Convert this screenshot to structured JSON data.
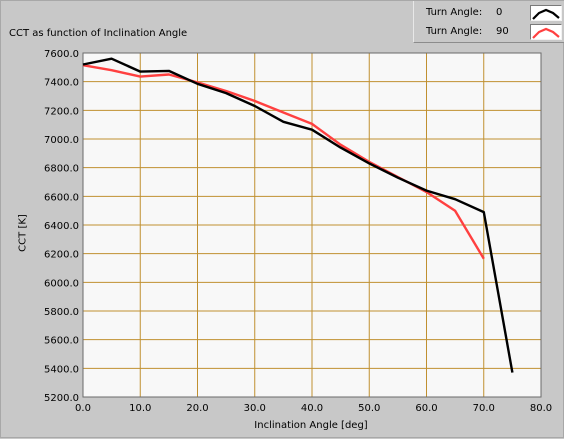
{
  "chart_data": {
    "type": "line",
    "title": "CCT as function of Inclination Angle",
    "xlabel": "Inclination Angle [deg]",
    "ylabel": "CCT [K]",
    "xlim": [
      0.0,
      80.0
    ],
    "ylim": [
      5200.0,
      7600.0
    ],
    "xticks": [
      "0.0",
      "10.0",
      "20.0",
      "30.0",
      "40.0",
      "50.0",
      "60.0",
      "70.0",
      "80.0"
    ],
    "yticks": [
      "7600.0",
      "7400.0",
      "7200.0",
      "7000.0",
      "6800.0",
      "6600.0",
      "6400.0",
      "6200.0",
      "6000.0",
      "5800.0",
      "5600.0",
      "5400.0",
      "5200.0"
    ],
    "grid": true,
    "grid_color": "#c09030",
    "plot_background": "#f8f8f8",
    "legend_position": "top-right",
    "series": [
      {
        "name": "Turn Angle:",
        "value_label": "0",
        "color": "#000000",
        "x": [
          0,
          5,
          10,
          15,
          20,
          25,
          30,
          35,
          40,
          45,
          50,
          55,
          60,
          65,
          70,
          75
        ],
        "y": [
          7520,
          7560,
          7470,
          7475,
          7385,
          7320,
          7230,
          7120,
          7065,
          6940,
          6830,
          6730,
          6640,
          6580,
          6490,
          5370
        ]
      },
      {
        "name": "Turn Angle:",
        "value_label": "90",
        "color": "#ff4040",
        "x": [
          0,
          5,
          10,
          15,
          20,
          25,
          30,
          35,
          40,
          45,
          50,
          55,
          60,
          65,
          70
        ],
        "y": [
          7515,
          7480,
          7435,
          7450,
          7395,
          7335,
          7265,
          7185,
          7105,
          6960,
          6840,
          6735,
          6630,
          6500,
          6165
        ]
      }
    ]
  }
}
